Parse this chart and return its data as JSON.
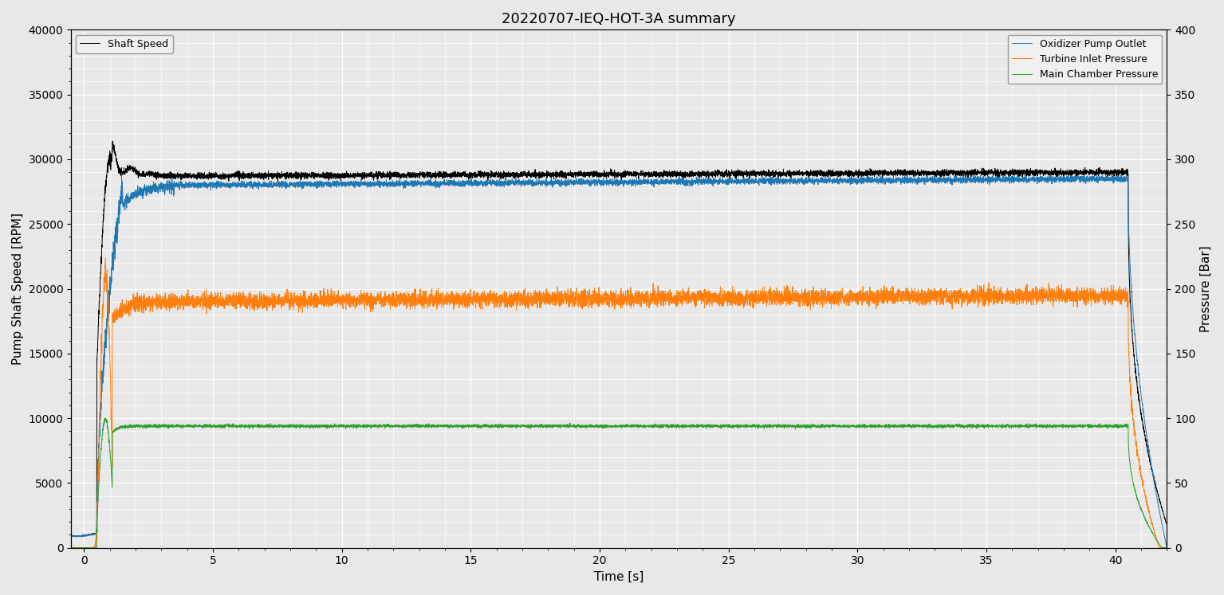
{
  "title": "20220707-IEQ-HOT-3A summary",
  "xlabel": "Time [s]",
  "ylabel_left": "Pump Shaft Speed [RPM]",
  "ylabel_right": "Pressure [Bar]",
  "ylim_left": [
    0,
    40000
  ],
  "ylim_right": [
    0,
    400
  ],
  "xlim": [
    -0.5,
    42
  ],
  "yticks_left": [
    0,
    5000,
    10000,
    15000,
    20000,
    25000,
    30000,
    35000,
    40000
  ],
  "yticks_right": [
    0,
    50,
    100,
    150,
    200,
    250,
    300,
    350,
    400
  ],
  "xticks": [
    0,
    5,
    10,
    15,
    20,
    25,
    30,
    35,
    40
  ],
  "background_color": "#e8e8e8",
  "grid_color": "#ffffff",
  "legend_shaft": "Shaft Speed",
  "legend_ox": "Oxidizer Pump Outlet",
  "legend_turb": "Turbine Inlet Pressure",
  "legend_main": "Main Chamber Pressure",
  "color_shaft": "#000000",
  "color_ox": "#1f77b4",
  "color_turb": "#ff7f0e",
  "color_main": "#2ca02c",
  "shaft_peak_rpm": 30000,
  "shaft_steady_rpm": 28700,
  "ox_steady_rpm": 28000,
  "turb_steady_rpm": 19000,
  "main_steady_rpm": 9400,
  "noise_shaft": 120,
  "noise_ox": 120,
  "noise_turb": 300,
  "noise_main": 60,
  "t_ignite": 0.5,
  "t_cutoff": 40.5
}
